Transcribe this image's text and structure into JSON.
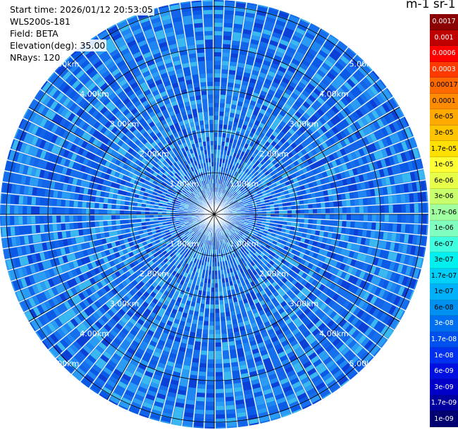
{
  "info": {
    "start_time": "Start time: 2026/01/12 20:53:05",
    "instrument": "WLS200s-181",
    "field": "Field: BETA",
    "elevation": "Elevation(deg): 35.00",
    "nrays": "NRays: 120"
  },
  "unit_title": "m-1 sr-1",
  "ring_labels": [
    "1.00km",
    "2.00km",
    "3.00km",
    "4.00km",
    "5.00km"
  ],
  "colorbar": [
    {
      "label": "0.0017",
      "color": "#8b0000",
      "text_color": "#ffffff"
    },
    {
      "label": "0.001",
      "color": "#c00000",
      "text_color": "#ffffff"
    },
    {
      "label": "0.0006",
      "color": "#ff0000",
      "text_color": "#ffffff"
    },
    {
      "label": "0.0003",
      "color": "#ff3a00",
      "text_color": "#ffffff"
    },
    {
      "label": "0.00017",
      "color": "#ff6a00",
      "text_color": "#000000"
    },
    {
      "label": "0.0001",
      "color": "#ff8c00",
      "text_color": "#000000"
    },
    {
      "label": "6e-05",
      "color": "#ffaa00",
      "text_color": "#000000"
    },
    {
      "label": "3e-05",
      "color": "#ffc400",
      "text_color": "#000000"
    },
    {
      "label": "1.7e-05",
      "color": "#ffe000",
      "text_color": "#000000"
    },
    {
      "label": "1e-05",
      "color": "#ffff33",
      "text_color": "#000000"
    },
    {
      "label": "6e-06",
      "color": "#e8ff4a",
      "text_color": "#000000"
    },
    {
      "label": "3e-06",
      "color": "#c8ff6a",
      "text_color": "#000000"
    },
    {
      "label": "1.7e-06",
      "color": "#a0ffa0",
      "text_color": "#000000"
    },
    {
      "label": "1e-06",
      "color": "#80ffc0",
      "text_color": "#000000"
    },
    {
      "label": "6e-07",
      "color": "#40ffe0",
      "text_color": "#000000"
    },
    {
      "label": "3e-07",
      "color": "#00f0f0",
      "text_color": "#000000"
    },
    {
      "label": "1.7e-07",
      "color": "#00d0f8",
      "text_color": "#000000"
    },
    {
      "label": "1e-07",
      "color": "#00b0f8",
      "text_color": "#000000"
    },
    {
      "label": "6e-08",
      "color": "#0090f0",
      "text_color": "#000000"
    },
    {
      "label": "3e-08",
      "color": "#0070f0",
      "text_color": "#ffffff"
    },
    {
      "label": "1.7e-08",
      "color": "#0050f0",
      "text_color": "#ffffff"
    },
    {
      "label": "1e-08",
      "color": "#0030f0",
      "text_color": "#ffffff"
    },
    {
      "label": "6e-09",
      "color": "#0010e0",
      "text_color": "#ffffff"
    },
    {
      "label": "3e-09",
      "color": "#0000c8",
      "text_color": "#ffffff"
    },
    {
      "label": "1.7e-09",
      "color": "#0000a0",
      "text_color": "#ffffff"
    },
    {
      "label": "1e-09",
      "color": "#000070",
      "text_color": "#ffffff"
    }
  ],
  "colors": {
    "background_field": "#1e78e8",
    "ray_gap": "#ffffff",
    "grid": "#000000"
  }
}
